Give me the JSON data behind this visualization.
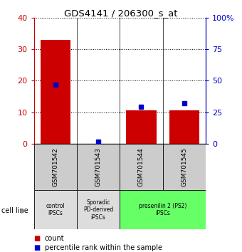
{
  "title": "GDS4141 / 206300_s_at",
  "samples": [
    "GSM701542",
    "GSM701543",
    "GSM701544",
    "GSM701545"
  ],
  "counts": [
    33,
    0,
    10.5,
    10.5
  ],
  "percentiles": [
    47,
    1.5,
    29,
    32
  ],
  "ylim_left": [
    0,
    40
  ],
  "ylim_right": [
    0,
    100
  ],
  "yticks_left": [
    0,
    10,
    20,
    30,
    40
  ],
  "yticks_right": [
    0,
    25,
    50,
    75,
    100
  ],
  "yticklabels_left": [
    "0",
    "10",
    "20",
    "30",
    "40"
  ],
  "yticklabels_right": [
    "0",
    "25",
    "50",
    "75",
    "100%"
  ],
  "bar_color": "#cc0000",
  "dot_color": "#0000cc",
  "bar_width": 0.7,
  "groups": [
    {
      "label": "control\nIPSCs",
      "start": 0,
      "end": 1,
      "color": "#dddddd"
    },
    {
      "label": "Sporadic\nPD-derived\niPSCs",
      "start": 1,
      "end": 2,
      "color": "#dddddd"
    },
    {
      "label": "presenilin 2 (PS2)\niPSCs",
      "start": 2,
      "end": 4,
      "color": "#66ff66"
    }
  ],
  "xlabel_left": "cell line",
  "left_axis_color": "#cc0000",
  "right_axis_color": "#0000cc",
  "legend_count_label": "count",
  "legend_percentile_label": "percentile rank within the sample",
  "sample_box_color": "#cccccc",
  "figure_bg": "#ffffff"
}
